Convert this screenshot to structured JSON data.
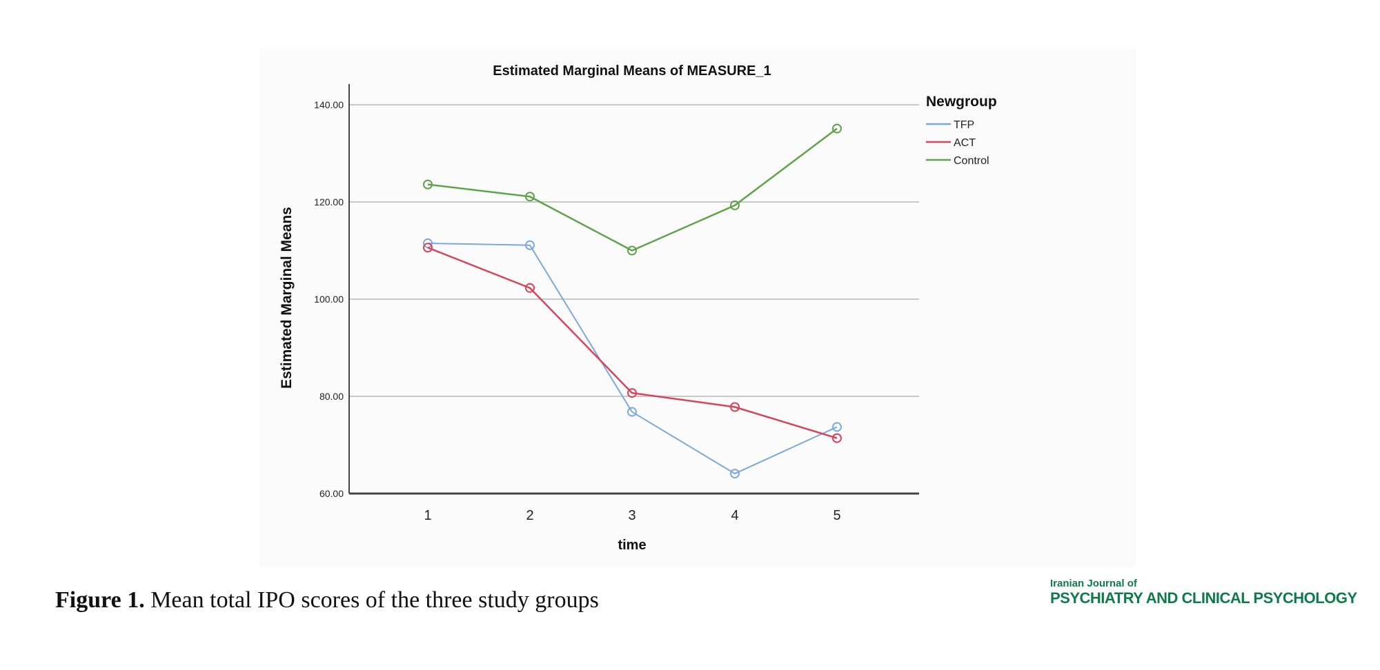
{
  "chart_data": {
    "type": "line",
    "title": "Estimated Marginal Means of MEASURE_1",
    "xlabel": "time",
    "ylabel": "Estimated Marginal Means",
    "x": [
      1,
      2,
      3,
      4,
      5
    ],
    "x_tick_labels": [
      "1",
      "2",
      "3",
      "4",
      "5"
    ],
    "ylim": [
      60,
      144
    ],
    "y_ticks": [
      60,
      80,
      100,
      120,
      140
    ],
    "y_tick_labels": [
      "60.00",
      "80.00",
      "100.00",
      "120.00",
      "140.00"
    ],
    "grid": "horizontal",
    "legend_title": "Newgroup",
    "legend_position": "right",
    "series": [
      {
        "name": "TFP",
        "color": "#7aa9dd",
        "values": [
          111.5,
          111.1,
          76.8,
          64.1,
          73.7
        ]
      },
      {
        "name": "ACT",
        "color": "#d9435a",
        "values": [
          110.6,
          102.3,
          80.7,
          77.8,
          71.4
        ]
      },
      {
        "name": "Control",
        "color": "#5ea34a",
        "values": [
          123.6,
          121.1,
          110.0,
          119.3,
          135.1
        ]
      }
    ]
  },
  "caption": {
    "label": "Figure 1.",
    "text": " Mean total IPO scores of the three study groups"
  },
  "logo": {
    "line1": "Iranian Journal of",
    "line2": "PSYCHIATRY AND CLINICAL PSYCHOLOGY"
  }
}
